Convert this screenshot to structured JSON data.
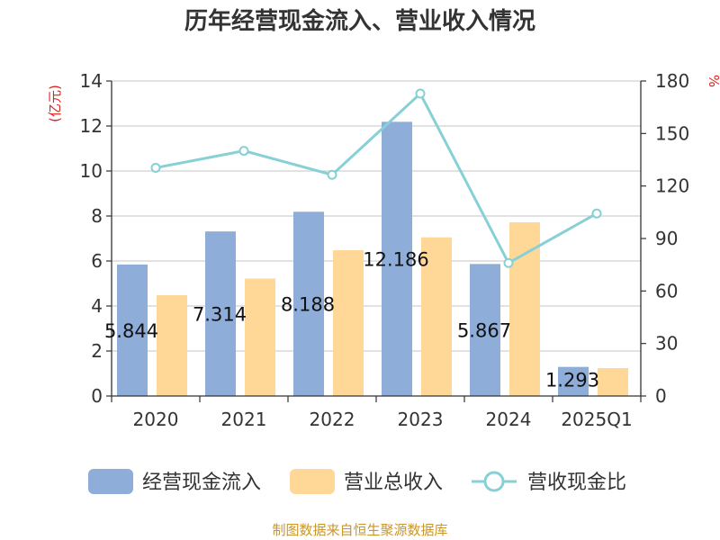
{
  "chart_data": {
    "type": "bar",
    "title": "历年经营现金流入、营业收入情况",
    "categories": [
      "2020",
      "2021",
      "2022",
      "2023",
      "2024",
      "2025Q1"
    ],
    "y_left": {
      "label": "(亿元)",
      "ylim": [
        0,
        14
      ],
      "ticks": [
        0,
        2,
        4,
        6,
        8,
        10,
        12,
        14
      ]
    },
    "y_right": {
      "label": "%",
      "ylim": [
        0,
        180
      ],
      "ticks": [
        0,
        30,
        60,
        90,
        120,
        150,
        180
      ]
    },
    "series": [
      {
        "name": "经营现金流入",
        "type": "bar",
        "axis": "left",
        "color": "#8eadd9",
        "values": [
          5.844,
          7.314,
          8.188,
          12.186,
          5.867,
          1.293
        ],
        "data_labels": [
          "5.844",
          "7.314",
          "8.188",
          "12.186",
          "5.867",
          "1.293"
        ]
      },
      {
        "name": "营业总收入",
        "type": "bar",
        "axis": "left",
        "color": "#ffd898",
        "values": [
          4.48,
          5.22,
          6.48,
          7.05,
          7.72,
          1.24
        ]
      },
      {
        "name": "营收现金比",
        "type": "line",
        "axis": "right",
        "color": "#86d0d6",
        "values": [
          130.4,
          140.1,
          126.4,
          172.8,
          76.0,
          104.3
        ]
      }
    ],
    "grid": true,
    "legend_position": "bottom"
  },
  "source_note": "制图数据来自恒生聚源数据库"
}
